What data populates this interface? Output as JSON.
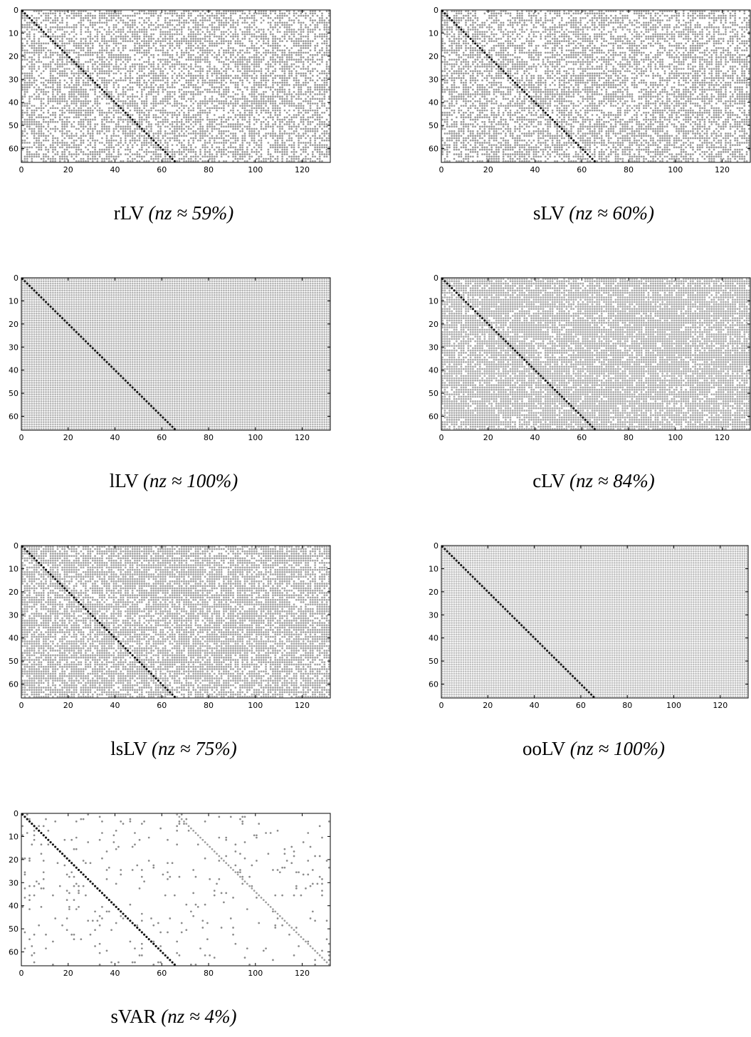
{
  "chart_data": [
    {
      "type": "heatmap",
      "name": "rLV",
      "caption_label": "rLV",
      "caption_math": "(nz ≈ 59%)",
      "rows": 66,
      "cols": 132,
      "density": 0.59,
      "xlim": [
        0,
        132
      ],
      "ylim": [
        0,
        66
      ],
      "y_inverted": true,
      "xticks": [
        0,
        20,
        40,
        60,
        80,
        100,
        120
      ],
      "yticks": [
        0,
        10,
        20,
        30,
        40,
        50,
        60
      ],
      "diagonal": true,
      "dot_color": "#9a9a9a",
      "diagonal_color": "#111111"
    },
    {
      "type": "heatmap",
      "name": "sLV",
      "caption_label": "sLV",
      "caption_math": "(nz ≈ 60%)",
      "rows": 66,
      "cols": 132,
      "density": 0.6,
      "xlim": [
        0,
        132
      ],
      "ylim": [
        0,
        66
      ],
      "y_inverted": true,
      "xticks": [
        0,
        20,
        40,
        60,
        80,
        100,
        120
      ],
      "yticks": [
        0,
        10,
        20,
        30,
        40,
        50,
        60
      ],
      "diagonal": true,
      "dot_color": "#9a9a9a",
      "diagonal_color": "#111111"
    },
    {
      "type": "heatmap",
      "name": "lLV",
      "caption_label": "lLV",
      "caption_math": "(nz ≈ 100%)",
      "rows": 66,
      "cols": 132,
      "density": 1.0,
      "xlim": [
        0,
        132
      ],
      "ylim": [
        0,
        66
      ],
      "y_inverted": true,
      "xticks": [
        0,
        20,
        40,
        60,
        80,
        100,
        120
      ],
      "yticks": [
        0,
        10,
        20,
        30,
        40,
        50,
        60
      ],
      "diagonal": true,
      "dot_color": "#b5b5b5",
      "diagonal_color": "#111111"
    },
    {
      "type": "heatmap",
      "name": "cLV",
      "caption_label": "cLV",
      "caption_math": "(nz ≈ 84%)",
      "rows": 66,
      "cols": 132,
      "density": 0.84,
      "xlim": [
        0,
        132
      ],
      "ylim": [
        0,
        66
      ],
      "y_inverted": true,
      "xticks": [
        0,
        20,
        40,
        60,
        80,
        100,
        120
      ],
      "yticks": [
        0,
        10,
        20,
        30,
        40,
        50,
        60
      ],
      "diagonal": true,
      "dot_color": "#a8a8a8",
      "diagonal_color": "#111111"
    },
    {
      "type": "heatmap",
      "name": "lsLV",
      "caption_label": "lsLV",
      "caption_math": "(nz ≈ 75%)",
      "rows": 66,
      "cols": 132,
      "density": 0.75,
      "xlim": [
        0,
        132
      ],
      "ylim": [
        0,
        66
      ],
      "y_inverted": true,
      "xticks": [
        0,
        20,
        40,
        60,
        80,
        100,
        120
      ],
      "yticks": [
        0,
        10,
        20,
        30,
        40,
        50,
        60
      ],
      "diagonal": true,
      "dot_color": "#a3a3a3",
      "diagonal_color": "#111111"
    },
    {
      "type": "heatmap",
      "name": "ooLV",
      "caption_label": "ooLV",
      "caption_math": "(nz ≈ 100%)",
      "rows": 66,
      "cols": 132,
      "density": 1.0,
      "xlim": [
        0,
        132
      ],
      "ylim": [
        0,
        66
      ],
      "y_inverted": true,
      "xticks": [
        0,
        20,
        40,
        60,
        80,
        100,
        120
      ],
      "yticks": [
        0,
        10,
        20,
        30,
        40,
        50,
        60
      ],
      "diagonal": true,
      "dot_color": "#c0c0c0",
      "diagonal_color": "#111111"
    },
    {
      "type": "heatmap",
      "name": "sVAR",
      "caption_label": "sVAR",
      "caption_math": "(nz ≈ 4%)",
      "rows": 66,
      "cols": 132,
      "density": 0.04,
      "xlim": [
        0,
        132
      ],
      "ylim": [
        0,
        66
      ],
      "y_inverted": true,
      "xticks": [
        0,
        20,
        40,
        60,
        80,
        100,
        120
      ],
      "yticks": [
        0,
        10,
        20,
        30,
        40,
        50,
        60
      ],
      "diagonal": true,
      "second_diagonal_offset": 66,
      "dot_color": "#8a8a8a",
      "diagonal_color": "#111111"
    }
  ]
}
